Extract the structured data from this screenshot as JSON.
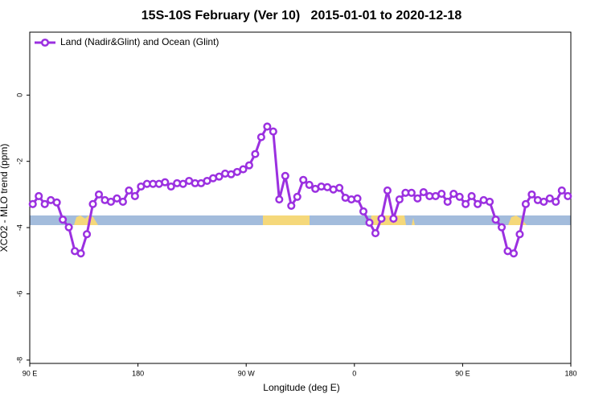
{
  "chart_data": {
    "type": "line",
    "title": "15S-10S February (Ver 10)   2015-01-01 to 2020-12-18",
    "x_label": "Longitude (deg E)",
    "y_label": "XCO2 - MLO trend (ppm)",
    "xlim": [
      90,
      540
    ],
    "ylim": [
      -8.1,
      1.9
    ],
    "xticks": [
      {
        "value": 90,
        "label": "90 E"
      },
      180,
      {
        "value": 270,
        "label": "90 W"
      },
      {
        "value": 360,
        "label": "0"
      },
      {
        "value": 450,
        "label": "90 E"
      },
      {
        "value": 540,
        "label": "180"
      }
    ],
    "yticks": [
      0,
      -2,
      -4,
      -6,
      -8
    ],
    "grid": false,
    "legend": "top-left",
    "x": [
      92.5,
      97.5,
      102.5,
      107.5,
      112.5,
      117.5,
      122.5,
      127.5,
      132.5,
      137.5,
      142.5,
      147.5,
      152.5,
      157.5,
      162.5,
      167.5,
      172.5,
      177.5,
      182.5,
      187.5,
      192.5,
      197.5,
      202.5,
      207.5,
      212.5,
      217.5,
      222.5,
      227.5,
      232.5,
      237.5,
      242.5,
      247.5,
      252.5,
      257.5,
      262.5,
      267.5,
      272.5,
      277.5,
      282.5,
      287.5,
      292.5,
      297.5,
      302.5,
      307.5,
      312.5,
      317.5,
      322.5,
      327.5,
      332.5,
      337.5,
      342.5,
      347.5,
      352.5,
      357.5,
      362.5,
      367.5,
      372.5,
      377.5,
      382.5,
      387.5,
      392.5,
      397.5,
      402.5,
      407.5,
      412.5,
      417.5,
      422.5,
      427.5,
      432.5,
      437.5,
      442.5,
      447.5,
      452.5,
      457.5,
      462.5,
      467.5,
      472.5,
      477.5,
      482.5,
      487.5,
      492.5,
      497.5,
      502.5,
      507.5,
      512.5,
      517.5,
      522.5,
      527.5,
      532.5,
      537.5
    ],
    "series": [
      {
        "name": "Land (Nadir&Glint) and Ocean (Glint)",
        "color": "#9b30e0",
        "values": [
          -3.29,
          -3.05,
          -3.29,
          -3.17,
          -3.24,
          -3.76,
          -3.99,
          -4.71,
          -4.78,
          -4.2,
          -3.29,
          -3.0,
          -3.17,
          -3.22,
          -3.12,
          -3.22,
          -2.88,
          -3.05,
          -2.76,
          -2.68,
          -2.68,
          -2.68,
          -2.63,
          -2.76,
          -2.66,
          -2.68,
          -2.59,
          -2.66,
          -2.66,
          -2.59,
          -2.51,
          -2.46,
          -2.37,
          -2.39,
          -2.32,
          -2.24,
          -2.12,
          -1.78,
          -1.27,
          -0.95,
          -1.1,
          -3.15,
          -2.44,
          -3.34,
          -3.07,
          -2.56,
          -2.71,
          -2.83,
          -2.76,
          -2.78,
          -2.85,
          -2.8,
          -3.1,
          -3.15,
          -3.12,
          -3.51,
          -3.85,
          -4.17,
          -3.73,
          -2.88,
          -3.73,
          -3.15,
          -2.95,
          -2.95,
          -3.12,
          -2.93,
          -3.05,
          -3.05,
          -2.98,
          -3.22,
          -2.98,
          -3.07,
          -3.29,
          -3.05,
          -3.29,
          -3.17,
          -3.22,
          -3.76,
          -3.99,
          -4.71,
          -4.78,
          -4.2,
          -3.29,
          -3.0,
          -3.17,
          -3.22,
          -3.12,
          -3.22,
          -2.88,
          -3.05
        ]
      }
    ]
  }
}
